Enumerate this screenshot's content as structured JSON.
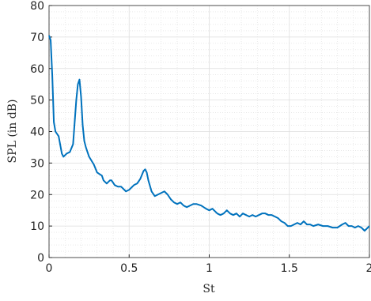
{
  "chart_data": {
    "type": "line",
    "xlabel": "St",
    "ylabel": "SPL (in dB)",
    "xlim": [
      0,
      2
    ],
    "ylim": [
      0,
      80
    ],
    "xticks": [
      0,
      0.5,
      1,
      1.5,
      2
    ],
    "yticks": [
      0,
      10,
      20,
      30,
      40,
      50,
      60,
      70,
      80
    ],
    "xminorticks": [
      0.1,
      0.2,
      0.3,
      0.4,
      0.6,
      0.7,
      0.8,
      0.9,
      1.1,
      1.2,
      1.3,
      1.4,
      1.6,
      1.7,
      1.8,
      1.9
    ],
    "yminorticks": [
      2,
      4,
      6,
      8,
      12,
      14,
      16,
      18,
      22,
      24,
      26,
      28,
      32,
      34,
      36,
      38,
      42,
      44,
      46,
      48,
      52,
      54,
      56,
      58,
      62,
      64,
      66,
      68,
      72,
      74,
      76,
      78
    ],
    "grid": true,
    "minor_grid": true,
    "x": [
      0,
      0.01,
      0.02,
      0.03,
      0.04,
      0.06,
      0.08,
      0.09,
      0.11,
      0.13,
      0.15,
      0.17,
      0.18,
      0.19,
      0.2,
      0.21,
      0.22,
      0.23,
      0.25,
      0.28,
      0.3,
      0.33,
      0.34,
      0.36,
      0.38,
      0.39,
      0.41,
      0.43,
      0.45,
      0.47,
      0.48,
      0.5,
      0.53,
      0.55,
      0.57,
      0.59,
      0.6,
      0.61,
      0.62,
      0.64,
      0.66,
      0.68,
      0.7,
      0.72,
      0.74,
      0.76,
      0.78,
      0.8,
      0.82,
      0.84,
      0.86,
      0.88,
      0.9,
      0.92,
      0.95,
      0.98,
      1.0,
      1.02,
      1.05,
      1.07,
      1.09,
      1.11,
      1.13,
      1.15,
      1.17,
      1.19,
      1.21,
      1.23,
      1.25,
      1.27,
      1.29,
      1.31,
      1.33,
      1.35,
      1.37,
      1.39,
      1.41,
      1.43,
      1.45,
      1.47,
      1.49,
      1.51,
      1.53,
      1.55,
      1.57,
      1.59,
      1.61,
      1.63,
      1.65,
      1.68,
      1.71,
      1.74,
      1.77,
      1.8,
      1.83,
      1.85,
      1.87,
      1.89,
      1.91,
      1.93,
      1.95,
      1.97,
      1.99,
      2.0
    ],
    "series": [
      {
        "name": "SPL",
        "color": "#0072bd",
        "values": [
          70.5,
          69,
          58,
          43,
          40,
          38.5,
          33,
          32,
          33,
          33.5,
          36,
          50,
          55,
          56.5,
          51,
          42,
          37,
          35,
          32,
          29.5,
          27,
          26,
          24.5,
          23.5,
          24.5,
          24.5,
          23,
          22.5,
          22.5,
          21.5,
          21,
          21.5,
          23,
          23.5,
          25,
          27.5,
          28,
          27,
          24.5,
          21,
          19.5,
          20,
          20.5,
          21,
          20,
          18.5,
          17.5,
          17,
          17.5,
          16.5,
          16,
          16.5,
          17,
          17,
          16.5,
          15.5,
          15,
          15.5,
          14,
          13.5,
          14,
          15,
          14,
          13.5,
          14,
          13,
          14,
          13.5,
          13,
          13.5,
          13,
          13.5,
          14,
          14,
          13.5,
          13.5,
          13,
          12.5,
          11.5,
          11,
          10,
          10,
          10.5,
          11,
          10.5,
          11.5,
          10.5,
          10.5,
          10,
          10.5,
          10,
          10,
          9.5,
          9.5,
          10.5,
          11,
          10,
          10,
          9.5,
          10,
          9.5,
          8.5,
          9.5,
          10
        ]
      }
    ]
  }
}
